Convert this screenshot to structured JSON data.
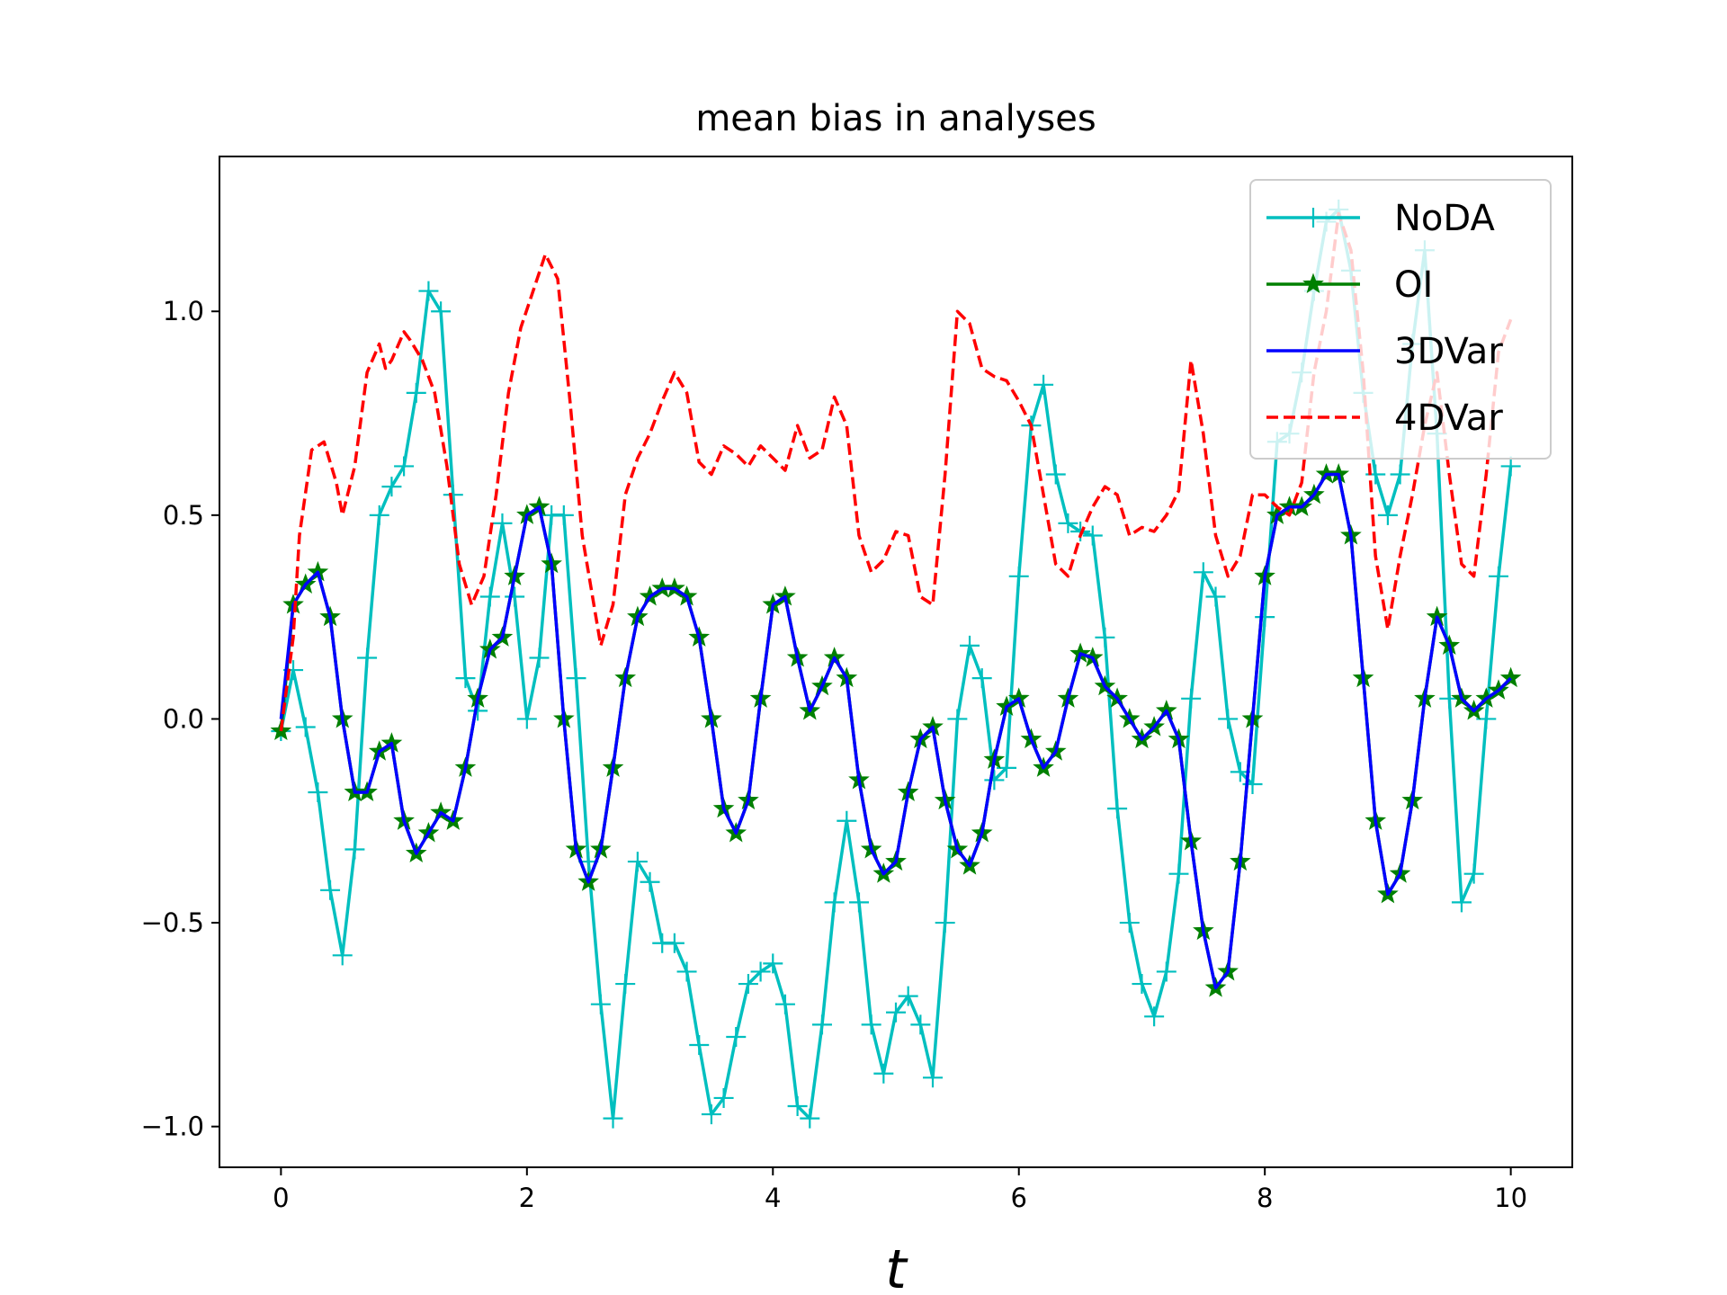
{
  "chart_data": {
    "type": "line",
    "title": "mean bias in analyses",
    "xlabel": "t",
    "ylabel": "",
    "xlim": [
      -0.5,
      10.5
    ],
    "ylim": [
      -1.1,
      1.38
    ],
    "xticks": [
      0,
      2,
      4,
      6,
      8,
      10
    ],
    "xtick_labels": [
      "0",
      "2",
      "4",
      "6",
      "8",
      "10"
    ],
    "yticks": [
      -1.0,
      -0.5,
      0.0,
      0.5,
      1.0
    ],
    "ytick_labels": [
      "−1.0",
      "−0.5",
      "0.0",
      "0.5",
      "1.0"
    ],
    "grid": false,
    "legend_position": "upper right",
    "series": [
      {
        "name": "NoDA",
        "color": "#00bfbf",
        "line_style": "solid",
        "marker": "plus",
        "x": [
          0,
          0.1,
          0.2,
          0.3,
          0.4,
          0.5,
          0.6,
          0.7,
          0.8,
          0.9,
          1.0,
          1.1,
          1.2,
          1.3,
          1.4,
          1.5,
          1.6,
          1.7,
          1.8,
          1.9,
          2.0,
          2.1,
          2.2,
          2.3,
          2.4,
          2.5,
          2.6,
          2.7,
          2.8,
          2.9,
          3.0,
          3.1,
          3.2,
          3.3,
          3.4,
          3.5,
          3.6,
          3.7,
          3.8,
          3.9,
          4.0,
          4.1,
          4.2,
          4.3,
          4.4,
          4.5,
          4.6,
          4.7,
          4.8,
          4.9,
          5.0,
          5.1,
          5.2,
          5.3,
          5.4,
          5.5,
          5.6,
          5.7,
          5.8,
          5.9,
          6.0,
          6.1,
          6.2,
          6.3,
          6.4,
          6.5,
          6.6,
          6.7,
          6.8,
          6.9,
          7.0,
          7.1,
          7.2,
          7.3,
          7.4,
          7.5,
          7.6,
          7.7,
          7.8,
          7.9,
          8.0,
          8.1,
          8.2,
          8.3,
          8.4,
          8.5,
          8.6,
          8.7,
          8.8,
          8.9,
          9.0,
          9.1,
          9.2,
          9.3,
          9.4,
          9.5,
          9.6,
          9.7,
          9.8,
          9.9,
          10.0
        ],
        "y": [
          -0.03,
          0.12,
          -0.02,
          -0.18,
          -0.42,
          -0.58,
          -0.32,
          0.15,
          0.5,
          0.57,
          0.62,
          0.8,
          1.05,
          1.0,
          0.55,
          0.1,
          0.02,
          0.3,
          0.48,
          0.3,
          0.0,
          0.15,
          0.5,
          0.5,
          0.1,
          -0.35,
          -0.7,
          -0.98,
          -0.65,
          -0.35,
          -0.4,
          -0.55,
          -0.55,
          -0.62,
          -0.8,
          -0.97,
          -0.93,
          -0.78,
          -0.65,
          -0.62,
          -0.6,
          -0.7,
          -0.95,
          -0.98,
          -0.75,
          -0.45,
          -0.25,
          -0.45,
          -0.75,
          -0.87,
          -0.72,
          -0.68,
          -0.75,
          -0.88,
          -0.5,
          0.0,
          0.18,
          0.1,
          -0.15,
          -0.12,
          0.35,
          0.72,
          0.82,
          0.6,
          0.48,
          0.46,
          0.45,
          0.2,
          -0.22,
          -0.5,
          -0.65,
          -0.73,
          -0.62,
          -0.38,
          0.05,
          0.36,
          0.3,
          0.0,
          -0.13,
          -0.16,
          0.25,
          0.68,
          0.7,
          0.85,
          1.05,
          1.22,
          1.25,
          1.1,
          0.8,
          0.6,
          0.5,
          0.6,
          0.92,
          1.15,
          0.7,
          0.05,
          -0.45,
          -0.38,
          0.0,
          0.35,
          0.62
        ]
      },
      {
        "name": "OI",
        "color": "#008000",
        "line_style": "solid",
        "marker": "star",
        "x": [
          0,
          0.1,
          0.2,
          0.3,
          0.4,
          0.5,
          0.6,
          0.7,
          0.8,
          0.9,
          1.0,
          1.1,
          1.2,
          1.3,
          1.4,
          1.5,
          1.6,
          1.7,
          1.8,
          1.9,
          2.0,
          2.1,
          2.2,
          2.3,
          2.4,
          2.5,
          2.6,
          2.7,
          2.8,
          2.9,
          3.0,
          3.1,
          3.2,
          3.3,
          3.4,
          3.5,
          3.6,
          3.7,
          3.8,
          3.9,
          4.0,
          4.1,
          4.2,
          4.3,
          4.4,
          4.5,
          4.6,
          4.7,
          4.8,
          4.9,
          5.0,
          5.1,
          5.2,
          5.3,
          5.4,
          5.5,
          5.6,
          5.7,
          5.8,
          5.9,
          6.0,
          6.1,
          6.2,
          6.3,
          6.4,
          6.5,
          6.6,
          6.7,
          6.8,
          6.9,
          7.0,
          7.1,
          7.2,
          7.3,
          7.4,
          7.5,
          7.6,
          7.7,
          7.8,
          7.9,
          8.0,
          8.1,
          8.2,
          8.3,
          8.4,
          8.5,
          8.6,
          8.7,
          8.8,
          8.9,
          9.0,
          9.1,
          9.2,
          9.3,
          9.4,
          9.5,
          9.6,
          9.7,
          9.8,
          9.9,
          10.0
        ],
        "y": [
          -0.03,
          0.28,
          0.33,
          0.36,
          0.25,
          0.0,
          -0.18,
          -0.18,
          -0.08,
          -0.06,
          -0.25,
          -0.33,
          -0.28,
          -0.23,
          -0.25,
          -0.12,
          0.05,
          0.17,
          0.2,
          0.35,
          0.5,
          0.52,
          0.38,
          0.0,
          -0.32,
          -0.4,
          -0.32,
          -0.12,
          0.1,
          0.25,
          0.3,
          0.32,
          0.32,
          0.3,
          0.2,
          0.0,
          -0.22,
          -0.28,
          -0.2,
          0.05,
          0.28,
          0.3,
          0.15,
          0.02,
          0.08,
          0.15,
          0.1,
          -0.15,
          -0.32,
          -0.38,
          -0.35,
          -0.18,
          -0.05,
          -0.02,
          -0.2,
          -0.32,
          -0.36,
          -0.28,
          -0.1,
          0.03,
          0.05,
          -0.05,
          -0.12,
          -0.08,
          0.05,
          0.16,
          0.15,
          0.08,
          0.05,
          0.0,
          -0.05,
          -0.02,
          0.02,
          -0.05,
          -0.3,
          -0.52,
          -0.66,
          -0.62,
          -0.35,
          0.0,
          0.35,
          0.5,
          0.52,
          0.52,
          0.55,
          0.6,
          0.6,
          0.45,
          0.1,
          -0.25,
          -0.43,
          -0.38,
          -0.2,
          0.05,
          0.25,
          0.18,
          0.05,
          0.02,
          0.05,
          0.07,
          0.1
        ]
      },
      {
        "name": "3DVar",
        "color": "#0000ff",
        "line_style": "solid",
        "marker": "none",
        "x": [
          0,
          0.1,
          0.2,
          0.3,
          0.4,
          0.5,
          0.6,
          0.7,
          0.8,
          0.9,
          1.0,
          1.1,
          1.2,
          1.3,
          1.4,
          1.5,
          1.6,
          1.7,
          1.8,
          1.9,
          2.0,
          2.1,
          2.2,
          2.3,
          2.4,
          2.5,
          2.6,
          2.7,
          2.8,
          2.9,
          3.0,
          3.1,
          3.2,
          3.3,
          3.4,
          3.5,
          3.6,
          3.7,
          3.8,
          3.9,
          4.0,
          4.1,
          4.2,
          4.3,
          4.4,
          4.5,
          4.6,
          4.7,
          4.8,
          4.9,
          5.0,
          5.1,
          5.2,
          5.3,
          5.4,
          5.5,
          5.6,
          5.7,
          5.8,
          5.9,
          6.0,
          6.1,
          6.2,
          6.3,
          6.4,
          6.5,
          6.6,
          6.7,
          6.8,
          6.9,
          7.0,
          7.1,
          7.2,
          7.3,
          7.4,
          7.5,
          7.6,
          7.7,
          7.8,
          7.9,
          8.0,
          8.1,
          8.2,
          8.3,
          8.4,
          8.5,
          8.6,
          8.7,
          8.8,
          8.9,
          9.0,
          9.1,
          9.2,
          9.3,
          9.4,
          9.5,
          9.6,
          9.7,
          9.8,
          9.9,
          10.0
        ],
        "y": [
          0.0,
          0.28,
          0.33,
          0.36,
          0.25,
          0.0,
          -0.18,
          -0.18,
          -0.08,
          -0.06,
          -0.25,
          -0.33,
          -0.28,
          -0.23,
          -0.25,
          -0.12,
          0.05,
          0.17,
          0.2,
          0.35,
          0.5,
          0.52,
          0.38,
          0.0,
          -0.32,
          -0.4,
          -0.32,
          -0.12,
          0.1,
          0.25,
          0.3,
          0.32,
          0.32,
          0.3,
          0.2,
          0.0,
          -0.22,
          -0.28,
          -0.2,
          0.05,
          0.28,
          0.3,
          0.15,
          0.02,
          0.08,
          0.15,
          0.1,
          -0.15,
          -0.32,
          -0.38,
          -0.35,
          -0.18,
          -0.05,
          -0.02,
          -0.2,
          -0.32,
          -0.36,
          -0.28,
          -0.1,
          0.03,
          0.05,
          -0.05,
          -0.12,
          -0.08,
          0.05,
          0.16,
          0.15,
          0.08,
          0.05,
          0.0,
          -0.05,
          -0.02,
          0.02,
          -0.05,
          -0.3,
          -0.52,
          -0.66,
          -0.62,
          -0.35,
          0.0,
          0.35,
          0.5,
          0.52,
          0.52,
          0.55,
          0.6,
          0.6,
          0.45,
          0.1,
          -0.25,
          -0.43,
          -0.38,
          -0.2,
          0.05,
          0.25,
          0.18,
          0.05,
          0.02,
          0.05,
          0.07,
          0.1
        ]
      },
      {
        "name": "4DVar",
        "color": "#ff0000",
        "line_style": "dashed",
        "marker": "none",
        "x": [
          0,
          0.1,
          0.15,
          0.25,
          0.35,
          0.45,
          0.5,
          0.6,
          0.7,
          0.8,
          0.85,
          0.9,
          1.0,
          1.05,
          1.15,
          1.25,
          1.35,
          1.45,
          1.55,
          1.65,
          1.75,
          1.85,
          1.95,
          2.05,
          2.15,
          2.25,
          2.35,
          2.45,
          2.6,
          2.7,
          2.8,
          2.9,
          3.0,
          3.1,
          3.2,
          3.3,
          3.4,
          3.5,
          3.6,
          3.7,
          3.8,
          3.9,
          4.0,
          4.1,
          4.2,
          4.3,
          4.4,
          4.5,
          4.6,
          4.7,
          4.8,
          4.9,
          5.0,
          5.1,
          5.2,
          5.3,
          5.4,
          5.5,
          5.6,
          5.7,
          5.8,
          5.9,
          6.0,
          6.1,
          6.2,
          6.3,
          6.4,
          6.5,
          6.6,
          6.7,
          6.8,
          6.9,
          7.0,
          7.1,
          7.2,
          7.3,
          7.4,
          7.5,
          7.6,
          7.7,
          7.8,
          7.9,
          8.0,
          8.1,
          8.2,
          8.3,
          8.4,
          8.5,
          8.6,
          8.7,
          8.8,
          8.9,
          9.0,
          9.1,
          9.2,
          9.3,
          9.4,
          9.5,
          9.6,
          9.7,
          9.8,
          9.9,
          10.0
        ],
        "y": [
          -0.03,
          0.2,
          0.45,
          0.66,
          0.68,
          0.58,
          0.5,
          0.62,
          0.85,
          0.92,
          0.86,
          0.88,
          0.95,
          0.93,
          0.88,
          0.8,
          0.62,
          0.38,
          0.28,
          0.35,
          0.55,
          0.8,
          0.96,
          1.05,
          1.14,
          1.08,
          0.78,
          0.45,
          0.18,
          0.28,
          0.55,
          0.64,
          0.7,
          0.78,
          0.85,
          0.8,
          0.63,
          0.6,
          0.67,
          0.65,
          0.62,
          0.67,
          0.64,
          0.61,
          0.72,
          0.64,
          0.66,
          0.79,
          0.72,
          0.45,
          0.36,
          0.39,
          0.46,
          0.45,
          0.3,
          0.28,
          0.6,
          1.0,
          0.97,
          0.86,
          0.84,
          0.83,
          0.78,
          0.72,
          0.55,
          0.38,
          0.35,
          0.45,
          0.52,
          0.57,
          0.55,
          0.45,
          0.47,
          0.46,
          0.5,
          0.56,
          0.88,
          0.7,
          0.45,
          0.35,
          0.4,
          0.55,
          0.55,
          0.52,
          0.5,
          0.58,
          0.85,
          1.0,
          1.24,
          1.15,
          0.85,
          0.4,
          0.22,
          0.4,
          0.55,
          0.72,
          0.85,
          0.6,
          0.38,
          0.35,
          0.6,
          0.9,
          0.98
        ]
      }
    ]
  }
}
